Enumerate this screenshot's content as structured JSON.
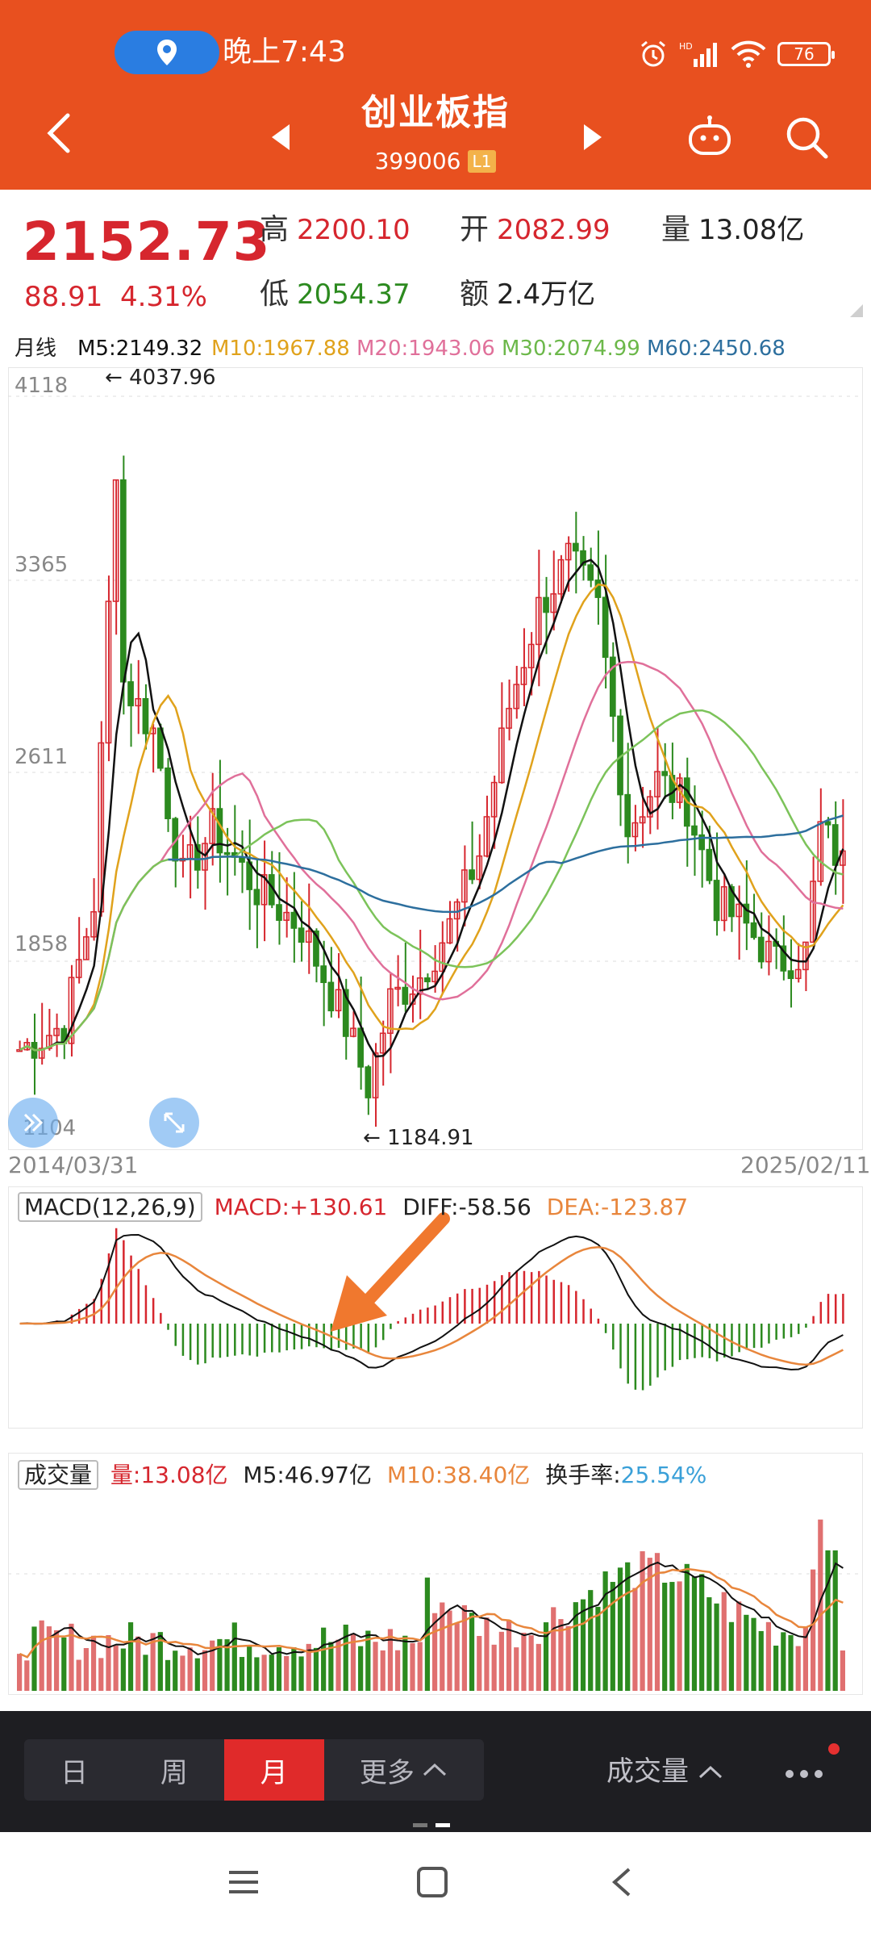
{
  "status_bar": {
    "time": "晚上7:43",
    "battery": "76"
  },
  "header": {
    "title": "创业板指",
    "code": "399006",
    "level": "L1"
  },
  "quote": {
    "price": "2152.73",
    "change": "88.91",
    "change_pct": "4.31%",
    "high_label": "高",
    "high": "2200.10",
    "low_label": "低",
    "low": "2054.37",
    "open_label": "开",
    "open": "2082.99",
    "volume_label": "量",
    "volume": "13.08亿",
    "amount_label": "额",
    "amount": "2.4万亿"
  },
  "ma_legend": {
    "period": "月线",
    "m5": "M5:2149.32",
    "m10": "M10:1967.88",
    "m20": "M20:1943.06",
    "m30": "M30:2074.99",
    "m60": "M60:2450.68"
  },
  "kline": {
    "y_ticks": [
      "4118",
      "3365",
      "2611",
      "1858",
      "1104"
    ],
    "high_marker": "4037.96",
    "low_marker": "1184.91",
    "start_date": "2014/03/31",
    "end_date": "2025/02/11"
  },
  "macd": {
    "name": "MACD(12,26,9)",
    "macd": "MACD:+130.61",
    "diff": "DIFF:-58.56",
    "dea": "DEA:-123.87"
  },
  "volume_panel": {
    "name": "成交量",
    "vol": "量:13.08亿",
    "m5": "M5:46.97亿",
    "m10": "M10:38.40亿",
    "turnover_label": "换手率:",
    "turnover": "25.54%"
  },
  "toolbar": {
    "tabs": [
      "日",
      "周",
      "月",
      "更多"
    ],
    "active_tab": "月",
    "indicator": "成交量"
  },
  "colors": {
    "header": "#e8501f",
    "up": "#d6262e",
    "down": "#2c8a1f",
    "m5": "#111111",
    "m10": "#e0a21c",
    "m20": "#e0709a",
    "m30": "#7cc35a",
    "m60": "#2d6f9e"
  }
}
